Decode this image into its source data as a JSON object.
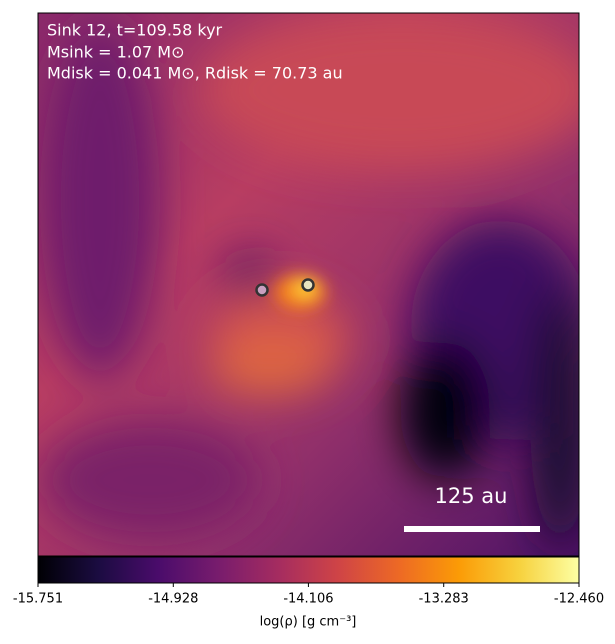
{
  "chart_data": {
    "type": "image",
    "title_lines": [
      "Sink 12, t=109.58 kyr",
      "Msink = 1.07 M⊙",
      "Mdisk = 0.041 M⊙, Rdisk = 70.73 au"
    ],
    "scale_bar_label": "125 au",
    "colorbar": {
      "label": "log(ρ) [g cm⁻³]",
      "colormap": "inferno",
      "clim": [
        -15.751,
        {
          "value": -12.46,
          "label": "-12.460"
        }
      ],
      "ticks": [
        -15.751,
        -14.928,
        -14.106,
        -13.283,
        {
          "value": -12.46,
          "label": "-12.460"
        }
      ]
    }
  }
}
